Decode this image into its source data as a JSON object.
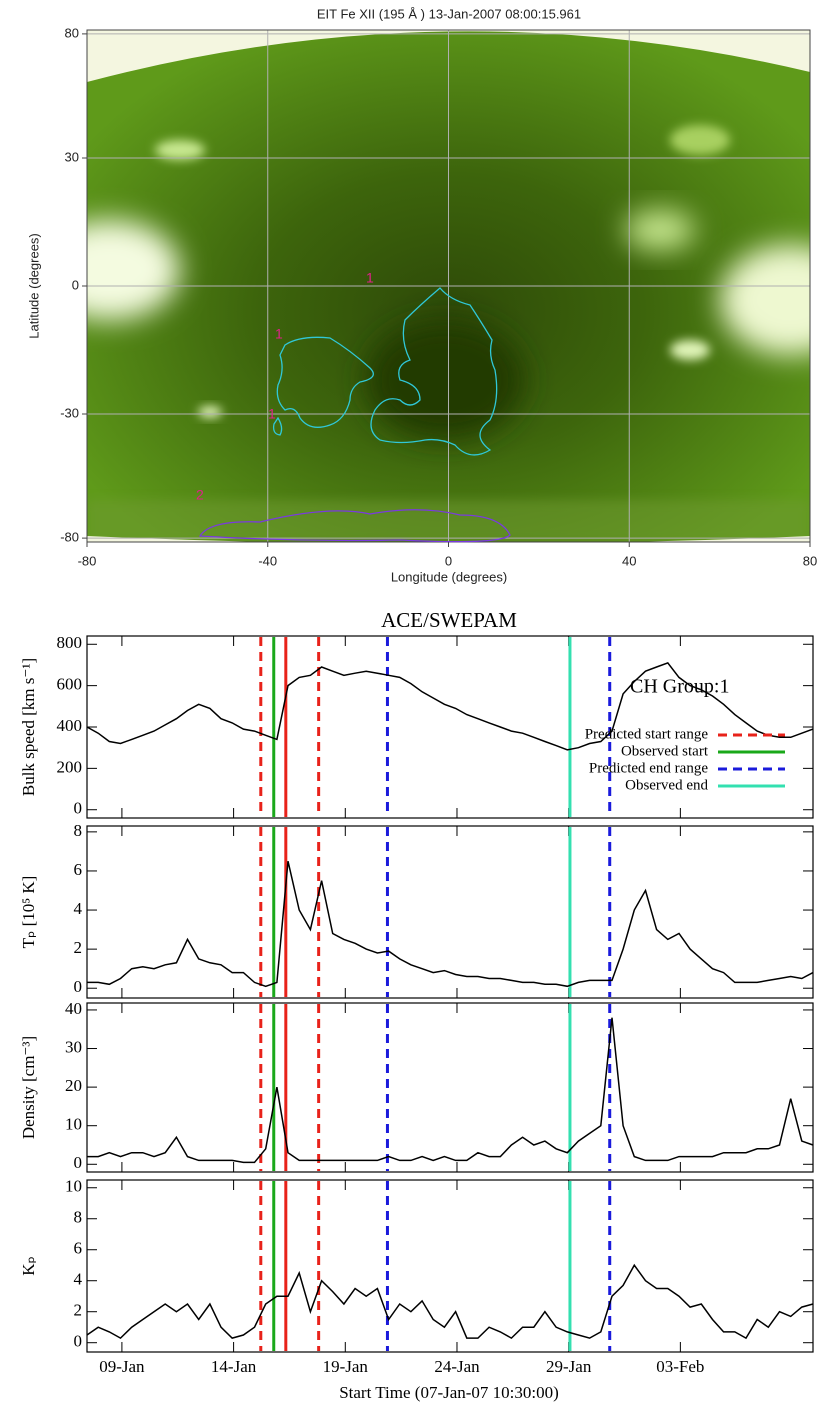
{
  "chart_data": [
    {
      "type": "image-map",
      "title": "EIT Fe XII (195 Å ) 13-Jan-2007 08:00:15.961",
      "xlabel": "Longitude (degrees)",
      "ylabel": "Latitude (degrees)",
      "xlim": [
        -80,
        80
      ],
      "ylim": [
        -90,
        90
      ],
      "yscale": "sine",
      "xticks": [
        -80,
        -40,
        0,
        40,
        80
      ],
      "yticks": [
        -80,
        -30,
        0,
        30,
        80
      ],
      "grid": true,
      "annotations": [
        "1",
        "1",
        "1",
        "2"
      ]
    },
    {
      "type": "line",
      "title": "ACE/SWEPAM",
      "xlabel": "Start Time (07-Jan-07 10:30:00)",
      "annotation": "CH Group:1",
      "xlim": [
        0,
        32.5
      ],
      "xticks": [
        {
          "value": 1.5625,
          "label": "09-Jan"
        },
        {
          "value": 6.5625,
          "label": "14-Jan"
        },
        {
          "value": 11.5625,
          "label": "19-Jan"
        },
        {
          "value": 16.5625,
          "label": "24-Jan"
        },
        {
          "value": 21.5625,
          "label": "29-Jan"
        },
        {
          "value": 26.5625,
          "label": "03-Feb"
        }
      ],
      "x": [
        0,
        0.5,
        1,
        1.5,
        2,
        2.5,
        3,
        3.5,
        4,
        4.5,
        5,
        5.5,
        6,
        6.5,
        7,
        7.5,
        8,
        8.5,
        9,
        9.5,
        10,
        10.5,
        11,
        11.5,
        12,
        12.5,
        13,
        13.5,
        14,
        14.5,
        15,
        15.5,
        16,
        16.5,
        17,
        17.5,
        18,
        18.5,
        19,
        19.5,
        20,
        20.5,
        21,
        21.5,
        22,
        22.5,
        23,
        23.5,
        24,
        24.5,
        25,
        25.5,
        26,
        26.5,
        27,
        27.5,
        28,
        28.5,
        29,
        29.5,
        30,
        30.5,
        31,
        31.5,
        32,
        32.5
      ],
      "panels": [
        {
          "ylabel": "Bulk speed [km s⁻¹]",
          "ylim": [
            -40,
            840
          ],
          "yticks": [
            0,
            200,
            400,
            600,
            800
          ],
          "values": [
            400,
            370,
            330,
            320,
            340,
            360,
            380,
            410,
            440,
            480,
            510,
            490,
            440,
            420,
            390,
            380,
            360,
            340,
            600,
            640,
            650,
            690,
            670,
            650,
            660,
            670,
            660,
            650,
            640,
            610,
            570,
            540,
            510,
            490,
            460,
            440,
            420,
            400,
            380,
            370,
            350,
            330,
            310,
            290,
            300,
            320,
            330,
            380,
            560,
            620,
            670,
            690,
            710,
            640,
            600,
            580,
            550,
            510,
            460,
            420,
            380,
            360,
            350,
            350,
            370,
            390
          ]
        },
        {
          "ylabel": "Tₚ [10⁵ K]",
          "ylim": [
            -0.5,
            8.3
          ],
          "yticks": [
            0,
            2,
            4,
            6,
            8
          ],
          "values": [
            0.3,
            0.3,
            0.2,
            0.5,
            1.0,
            1.1,
            1.0,
            1.2,
            1.3,
            2.5,
            1.5,
            1.3,
            1.2,
            0.8,
            0.8,
            0.3,
            0.1,
            0.3,
            6.5,
            4.0,
            3.0,
            5.5,
            2.8,
            2.5,
            2.3,
            2.0,
            1.8,
            1.9,
            1.5,
            1.2,
            1.0,
            0.8,
            0.9,
            0.7,
            0.6,
            0.6,
            0.5,
            0.5,
            0.4,
            0.3,
            0.3,
            0.2,
            0.2,
            0.1,
            0.3,
            0.4,
            0.4,
            0.4,
            2.0,
            4.0,
            5.0,
            3.0,
            2.5,
            2.8,
            2.0,
            1.5,
            1.0,
            0.8,
            0.3,
            0.3,
            0.3,
            0.4,
            0.5,
            0.6,
            0.5,
            0.8
          ]
        },
        {
          "ylabel": "Density [cm⁻³]",
          "ylim": [
            -2,
            41.8
          ],
          "yticks": [
            0,
            10,
            20,
            30,
            40
          ],
          "values": [
            2,
            2,
            3,
            2,
            3,
            3,
            2,
            3,
            7,
            2,
            1,
            1,
            1,
            1,
            0.5,
            0.5,
            4,
            20,
            3,
            1,
            1,
            1,
            1,
            1,
            1,
            1,
            1,
            2,
            1,
            1,
            2,
            1,
            2,
            1,
            1,
            3,
            2,
            2,
            5,
            7,
            5,
            6,
            4,
            3,
            6,
            8,
            10,
            38,
            10,
            2,
            1,
            1,
            1,
            2,
            2,
            2,
            2,
            3,
            3,
            3,
            4,
            4,
            5,
            17,
            6,
            5
          ]
        },
        {
          "ylabel": "Kₚ",
          "ylim": [
            -0.6,
            10.5
          ],
          "yticks": [
            0,
            2,
            4,
            6,
            8,
            10
          ],
          "values": [
            0.5,
            1,
            0.7,
            0.3,
            1,
            1.5,
            2,
            2.5,
            2,
            2.5,
            1.5,
            2.5,
            1,
            0.3,
            0.5,
            1,
            2.5,
            3,
            3,
            4.5,
            2,
            4,
            3.3,
            2.5,
            3.5,
            3,
            3.5,
            1.5,
            2.5,
            2,
            2.7,
            1.5,
            1,
            2,
            0.3,
            0.3,
            1,
            0.7,
            0.3,
            1,
            1,
            2,
            1,
            0.7,
            0.5,
            0.3,
            0.7,
            3,
            3.7,
            5,
            4,
            3.5,
            3.5,
            3,
            2.3,
            2.5,
            1.5,
            0.7,
            0.7,
            0.3,
            1.5,
            1,
            2,
            1.7,
            2.3,
            2.5
          ]
        }
      ],
      "vlines": [
        {
          "name": "Predicted start range",
          "color": "#e8221a",
          "dash": true,
          "x": [
            7.78,
            10.37
          ]
        },
        {
          "name": "Observed start",
          "color": "#1aa81a",
          "dash": false,
          "x": [
            8.36
          ]
        },
        {
          "name": "Predicted end range",
          "color": "#1a1adb",
          "dash": true,
          "x": [
            13.45,
            23.4
          ]
        },
        {
          "name": "Observed end",
          "color": "#33e0b0",
          "dash": false,
          "x": [
            21.62
          ]
        },
        {
          "color": "#e8221a",
          "dash": false,
          "x": [
            8.9
          ]
        }
      ]
    }
  ]
}
